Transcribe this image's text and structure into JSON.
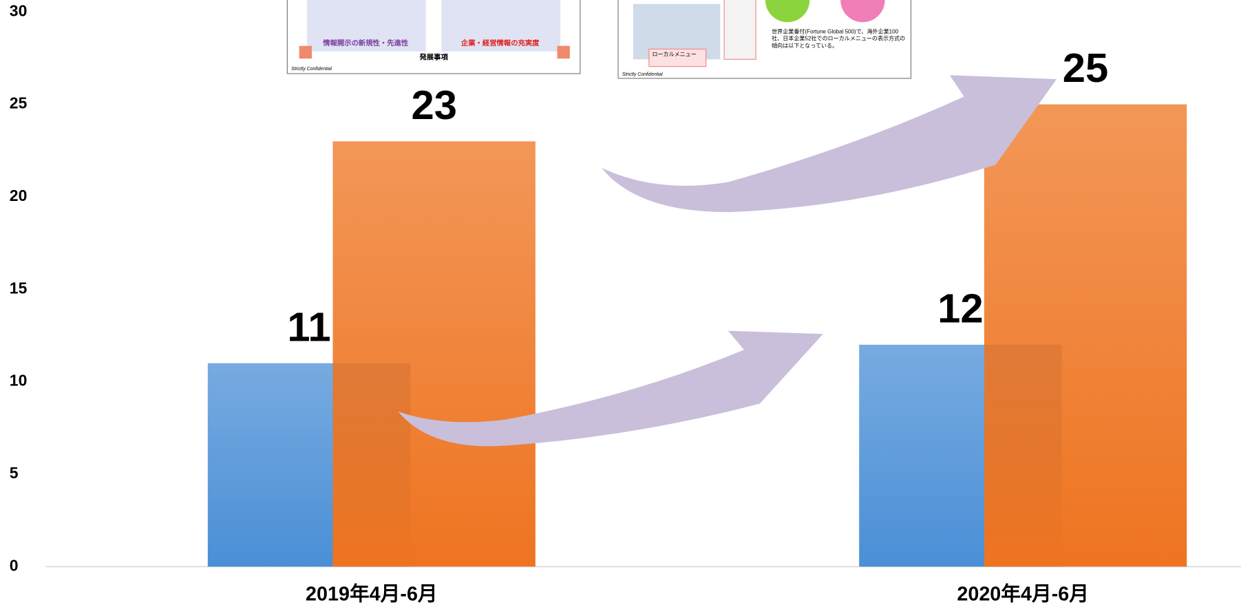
{
  "chart_data": {
    "type": "bar",
    "categories": [
      "2019年4月-6月",
      "2020年4月-6月"
    ],
    "series": [
      {
        "color": "#4a8fd6",
        "values": [
          11,
          12
        ]
      },
      {
        "color": "#ee7420",
        "values": [
          23,
          25
        ]
      }
    ],
    "ylim": [
      0,
      30
    ],
    "yticks": [
      0,
      5,
      10,
      15,
      20,
      25,
      30
    ],
    "grid": false
  },
  "insets": [
    {
      "texts": [
        "情報開示の新規性・先進性",
        "企業・経営情報の充実度",
        "発展事項",
        "Strictly Confidential"
      ]
    },
    {
      "texts": [
        "ローカルメニュー",
        "世界企業番付(Fortune Global 500)で、海外企業100社、日本企業52社でのローカルメニューの表示方式の傾向は以下となっている。",
        "Strictly Confidential"
      ]
    }
  ]
}
